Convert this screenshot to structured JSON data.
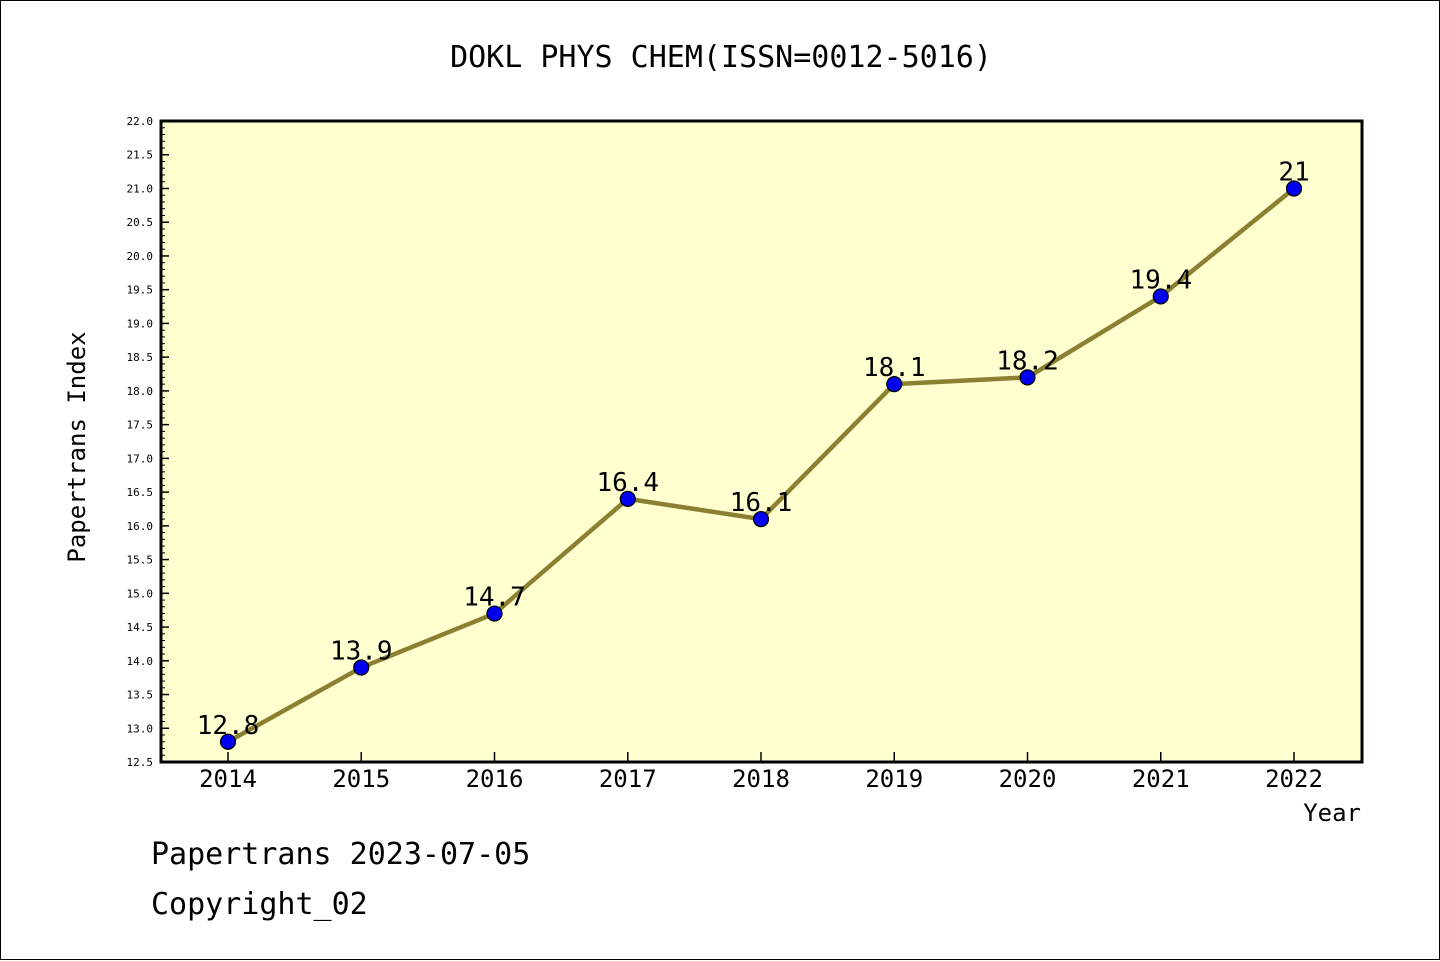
{
  "chart_data": {
    "type": "line",
    "title": "DOKL PHYS CHEM(ISSN=0012-5016)",
    "xlabel": "Year",
    "ylabel": "Papertrans Index",
    "x": [
      "2014",
      "2015",
      "2016",
      "2017",
      "2018",
      "2019",
      "2020",
      "2021",
      "2022"
    ],
    "series": [
      {
        "values": [
          12.8,
          13.9,
          14.7,
          16.4,
          16.1,
          18.1,
          18.2,
          19.4,
          21
        ],
        "labels": [
          "12.8",
          "13.9",
          "14.7",
          "16.4",
          "16.1",
          "18.1",
          "18.2",
          "19.4",
          "21"
        ]
      }
    ],
    "ylim": [
      12.5,
      22.0
    ],
    "yticks": [
      "12.5",
      "13.0",
      "13.5",
      "14.0",
      "14.5",
      "15.0",
      "15.5",
      "16.0",
      "16.5",
      "17.0",
      "17.5",
      "18.0",
      "18.5",
      "19.0",
      "19.5",
      "20.0",
      "20.5",
      "21.0",
      "21.5",
      "22.0"
    ],
    "colors": {
      "plot_bg": "#ffffd0",
      "line": "#8b8031",
      "marker": "#0000ee"
    },
    "grid": false,
    "legend": "none"
  },
  "footer": {
    "line1": "Papertrans 2023-07-05",
    "line2": "Copyright_02"
  }
}
